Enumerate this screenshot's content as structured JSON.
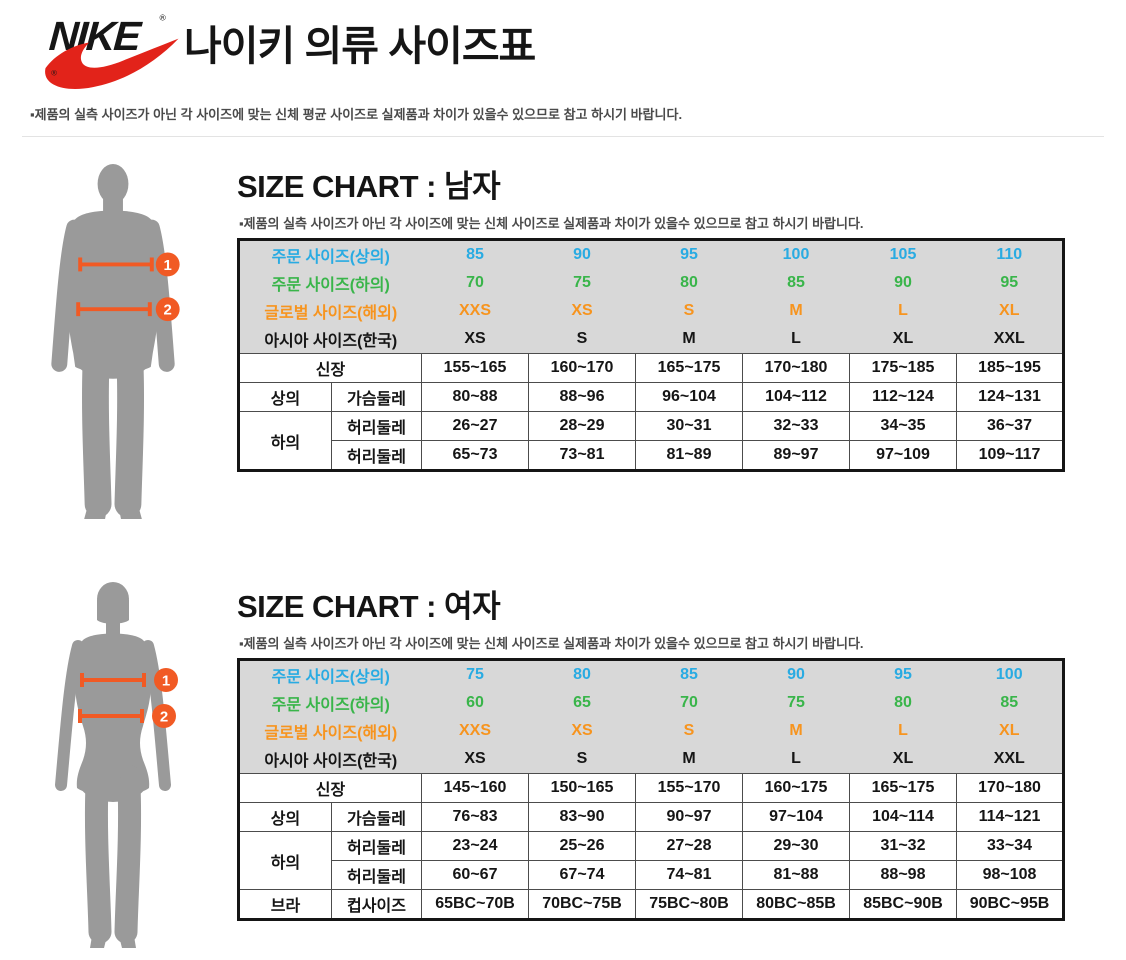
{
  "page": {
    "brand_logo": "NIKE",
    "registered_mark": "®",
    "title": "나이키 의류 사이즈표",
    "disclaimer": "▪제품의 실측 사이즈가 아닌 각 사이즈에 맞는 신체 평균 사이즈로 실제품과 차이가 있을수 있으므로 참고 하시기 바랍니다."
  },
  "colors": {
    "order_top": "#29ABE2",
    "order_bottom": "#39B54A",
    "global": "#F7941E",
    "asia": "#151515",
    "swoosh": "#E2231A",
    "silhouette": "#9A9A9A",
    "marker": "#F15A24",
    "table_header_bg": "#D8D8D8"
  },
  "sections": [
    {
      "id": "men",
      "title": "SIZE CHART : 남자",
      "subtitle": "▪제품의 실측 사이즈가 아닌 각 사이즈에 맞는 신체 사이즈로 실제품과 차이가 있을수 있으므로 참고 하시기 바랍니다.",
      "figure": "male-silhouette",
      "figure_markers": [
        "1",
        "2"
      ],
      "size_rows": [
        {
          "label": "주문 사이즈(상의)",
          "color": "order_top",
          "values": [
            "85",
            "90",
            "95",
            "100",
            "105",
            "110"
          ]
        },
        {
          "label": "주문 사이즈(하의)",
          "color": "order_bottom",
          "values": [
            "70",
            "75",
            "80",
            "85",
            "90",
            "95"
          ]
        },
        {
          "label": "글로벌 사이즈(해외)",
          "color": "global",
          "values": [
            "XXS",
            "XS",
            "S",
            "M",
            "L",
            "XL"
          ]
        },
        {
          "label": "아시아 사이즈(한국)",
          "color": "asia",
          "values": [
            "XS",
            "S",
            "M",
            "L",
            "XL",
            "XXL"
          ]
        }
      ],
      "measure_rows": [
        {
          "group": null,
          "label": "신장",
          "label_span": 2,
          "values": [
            "155~165",
            "160~170",
            "165~175",
            "170~180",
            "175~185",
            "185~195"
          ]
        },
        {
          "group": {
            "text": "상의",
            "rowspan": 1
          },
          "label": "가슴둘레",
          "values": [
            "80~88",
            "88~96",
            "96~104",
            "104~112",
            "112~124",
            "124~131"
          ]
        },
        {
          "group": {
            "text": "하의",
            "rowspan": 2
          },
          "label": "허리둘레",
          "values": [
            "26~27",
            "28~29",
            "30~31",
            "32~33",
            "34~35",
            "36~37"
          ]
        },
        {
          "group": null,
          "label": "허리둘레",
          "values": [
            "65~73",
            "73~81",
            "81~89",
            "89~97",
            "97~109",
            "109~117"
          ]
        }
      ]
    },
    {
      "id": "women",
      "title": "SIZE CHART : 여자",
      "subtitle": "▪제품의 실측 사이즈가 아닌 각 사이즈에 맞는 신체 사이즈로 실제품과 차이가 있을수 있으므로 참고 하시기 바랍니다.",
      "figure": "female-silhouette",
      "figure_markers": [
        "1",
        "2"
      ],
      "size_rows": [
        {
          "label": "주문 사이즈(상의)",
          "color": "order_top",
          "values": [
            "75",
            "80",
            "85",
            "90",
            "95",
            "100"
          ]
        },
        {
          "label": "주문 사이즈(하의)",
          "color": "order_bottom",
          "values": [
            "60",
            "65",
            "70",
            "75",
            "80",
            "85"
          ]
        },
        {
          "label": "글로벌 사이즈(해외)",
          "color": "global",
          "values": [
            "XXS",
            "XS",
            "S",
            "M",
            "L",
            "XL"
          ]
        },
        {
          "label": "아시아 사이즈(한국)",
          "color": "asia",
          "values": [
            "XS",
            "S",
            "M",
            "L",
            "XL",
            "XXL"
          ]
        }
      ],
      "measure_rows": [
        {
          "group": null,
          "label": "신장",
          "label_span": 2,
          "values": [
            "145~160",
            "150~165",
            "155~170",
            "160~175",
            "165~175",
            "170~180"
          ]
        },
        {
          "group": {
            "text": "상의",
            "rowspan": 1
          },
          "label": "가슴둘레",
          "values": [
            "76~83",
            "83~90",
            "90~97",
            "97~104",
            "104~114",
            "114~121"
          ]
        },
        {
          "group": {
            "text": "하의",
            "rowspan": 2
          },
          "label": "허리둘레",
          "values": [
            "23~24",
            "25~26",
            "27~28",
            "29~30",
            "31~32",
            "33~34"
          ]
        },
        {
          "group": null,
          "label": "허리둘레",
          "values": [
            "60~67",
            "67~74",
            "74~81",
            "81~88",
            "88~98",
            "98~108"
          ]
        },
        {
          "group": {
            "text": "브라",
            "rowspan": 1
          },
          "label": "컵사이즈",
          "values": [
            "65BC~70B",
            "70BC~75B",
            "75BC~80B",
            "80BC~85B",
            "85BC~90B",
            "90BC~95B"
          ]
        }
      ]
    }
  ]
}
